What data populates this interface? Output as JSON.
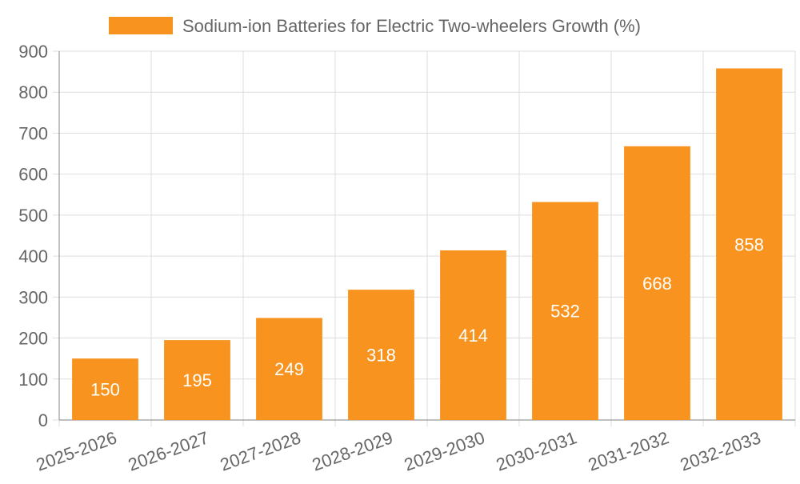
{
  "chart_data": {
    "type": "bar",
    "title": "",
    "legend": {
      "label": "Sodium-ion Batteries for Electric Two-wheelers Growth (%)",
      "placement": "top-center"
    },
    "categories": [
      "2025-2026",
      "2026-2027",
      "2027-2028",
      "2028-2029",
      "2029-2030",
      "2030-2031",
      "2031-2032",
      "2032-2033"
    ],
    "series": [
      {
        "name": "Sodium-ion Batteries for Electric Two-wheelers Growth (%)",
        "values": [
          150,
          195,
          249,
          318,
          414,
          532,
          668,
          858
        ],
        "color": "#f7931e"
      }
    ],
    "xlabel": "",
    "ylabel": "",
    "ylim": [
      0,
      900
    ],
    "yticks": [
      0,
      100,
      200,
      300,
      400,
      500,
      600,
      700,
      800,
      900
    ],
    "grid": true,
    "data_labels": true,
    "colors": {
      "bar": "#f7931e",
      "label_text": "#ffffff",
      "axis_text": "#666666",
      "grid": "#dddddd",
      "axis": "#999999"
    }
  }
}
